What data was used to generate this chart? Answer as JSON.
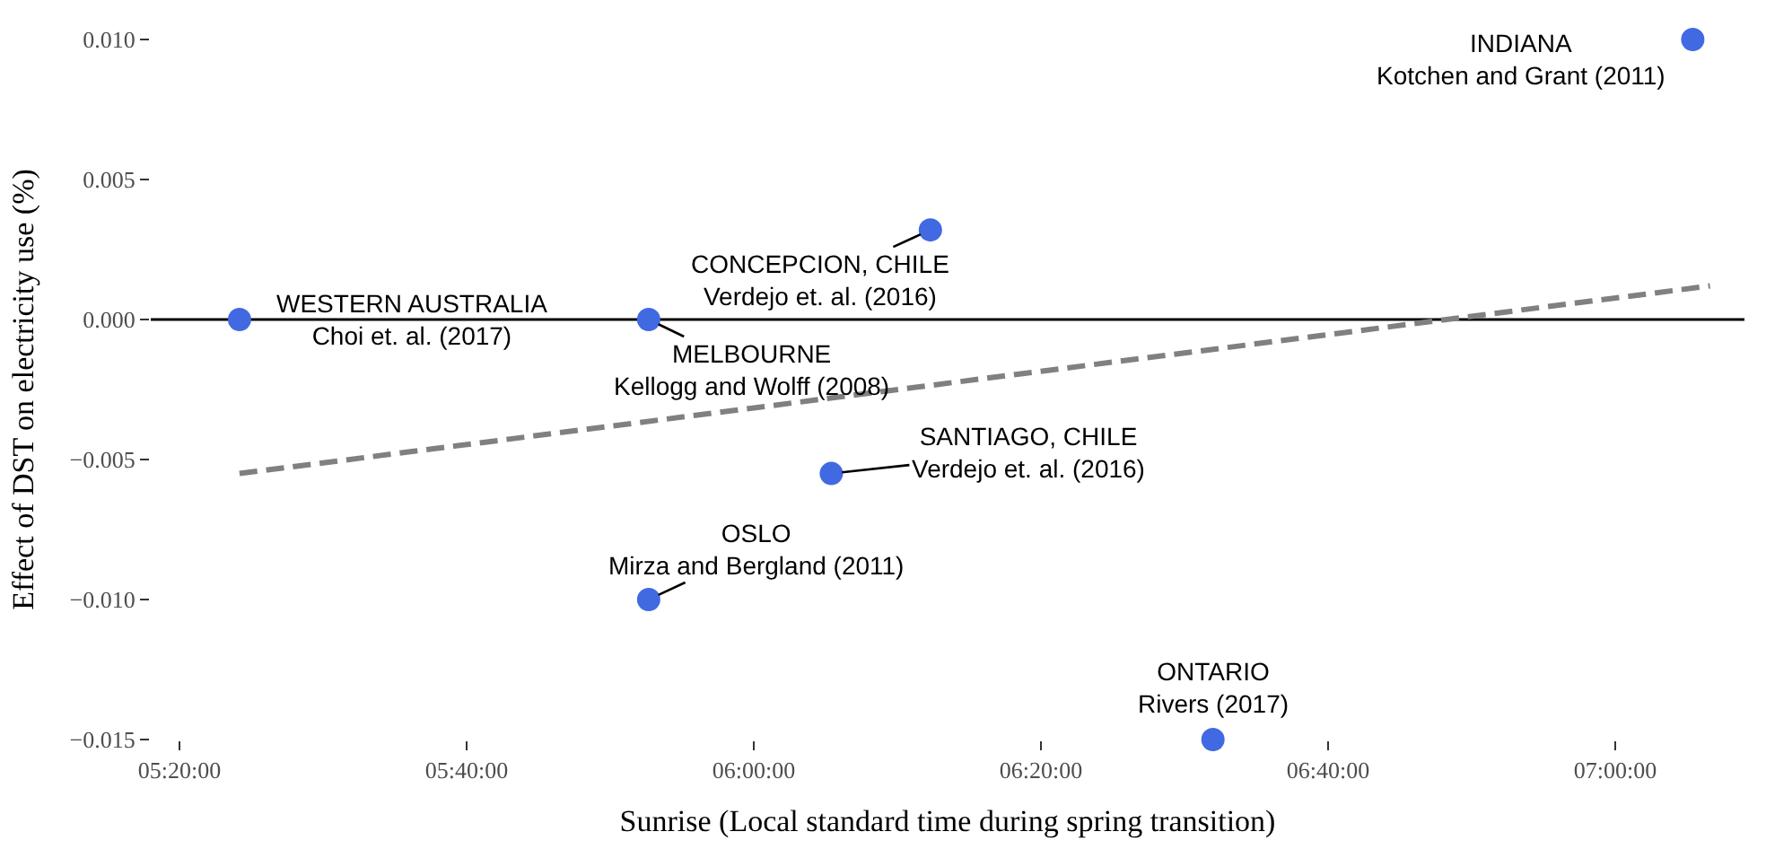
{
  "chart_data": {
    "type": "scatter",
    "xlabel": "Sunrise (Local standard time during spring transition)",
    "ylabel": "Effect of DST on electricity use (%)",
    "xlim": [
      5.3,
      7.15
    ],
    "ylim": [
      -0.015,
      0.01
    ],
    "xticks": [
      {
        "value": 5.333333,
        "label": "05:20:00"
      },
      {
        "value": 5.666667,
        "label": "05:40:00"
      },
      {
        "value": 6.0,
        "label": "06:00:00"
      },
      {
        "value": 6.333333,
        "label": "06:20:00"
      },
      {
        "value": 6.666667,
        "label": "06:40:00"
      },
      {
        "value": 7.0,
        "label": "07:00:00"
      }
    ],
    "yticks": [
      {
        "value": -0.015,
        "label": "−0.015"
      },
      {
        "value": -0.01,
        "label": "−0.010"
      },
      {
        "value": -0.005,
        "label": "−0.005"
      },
      {
        "value": 0,
        "label": "0.000"
      },
      {
        "value": 0.005,
        "label": "0.005"
      },
      {
        "value": 0.01,
        "label": "0.010"
      }
    ],
    "grid": false,
    "marker": "circle",
    "series": [
      {
        "type": "line",
        "color": "#808080",
        "line_style": "dashed",
        "marker": "none",
        "x": [
          5.403,
          7.11
        ],
        "values": [
          -0.0055,
          0.0012
        ]
      },
      {
        "color": "#4169e1",
        "x": [
          5.403,
          5.878,
          5.878,
          6.09,
          6.205,
          6.533,
          7.09
        ],
        "values": [
          0,
          0,
          -0.01,
          -0.0055,
          0.0032,
          -0.015,
          0.01
        ]
      }
    ],
    "ref_lines": [
      {
        "axis": "y",
        "value": 0,
        "color": "#000000",
        "line_style": "solid"
      }
    ],
    "annotations": [
      {
        "text": "WESTERN AUSTRALIA\nChoi et. al. (2017)",
        "x": 5.403,
        "y": 0
      },
      {
        "text": "MELBOURNE\nKellogg and Wolff (2008)",
        "x": 5.878,
        "y": 0
      },
      {
        "text": "OSLO\nMirza and Bergland (2011)",
        "x": 5.878,
        "y": -0.01
      },
      {
        "text": "SANTIAGO, CHILE\nVerdejo et. al. (2016)",
        "x": 6.09,
        "y": -0.0055
      },
      {
        "text": "CONCEPCION, CHILE\nVerdejo et. al. (2016)",
        "x": 6.205,
        "y": 0.0032
      },
      {
        "text": "ONTARIO\nRivers (2017)",
        "x": 6.533,
        "y": -0.015
      },
      {
        "text": "INDIANA\nKotchen and Grant (2011)",
        "x": 7.09,
        "y": 0.01
      }
    ]
  }
}
